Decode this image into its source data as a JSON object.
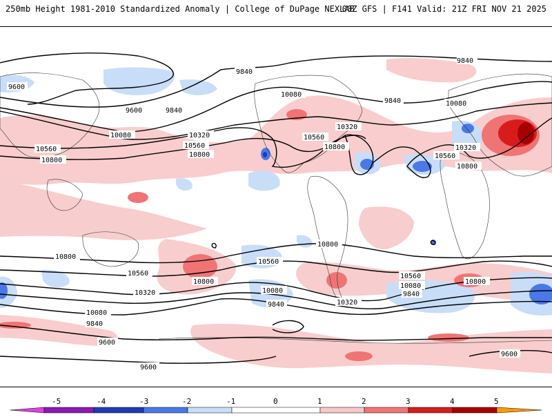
{
  "header": {
    "left_title": "250mb Height 1981-2010 Standardized Anomaly | College of DuPage NEXLAB",
    "right_title": "00Z GFS | F141 Valid: 21Z FRI NOV 21 2025"
  },
  "contour_labels": {
    "c9600": "9600",
    "c9840": "9840",
    "c10080": "10080",
    "c10320": "10320",
    "c10560": "10560",
    "c10800": "10800"
  },
  "colorbar": {
    "ticks": [
      "-5",
      "-4",
      "-3",
      "-2",
      "-1",
      "0",
      "1",
      "2",
      "3",
      "4",
      "5"
    ],
    "colors": {
      "m5": "#e040e0",
      "m4": "#8a1ab4",
      "m3": "#1c3cb4",
      "m2": "#4a78e6",
      "m1": "#c8ddf8",
      "p1": "#f8c8c8",
      "p2": "#f07474",
      "p3": "#d81c1c",
      "p4": "#a80000",
      "p5": "#ff9a00"
    }
  }
}
